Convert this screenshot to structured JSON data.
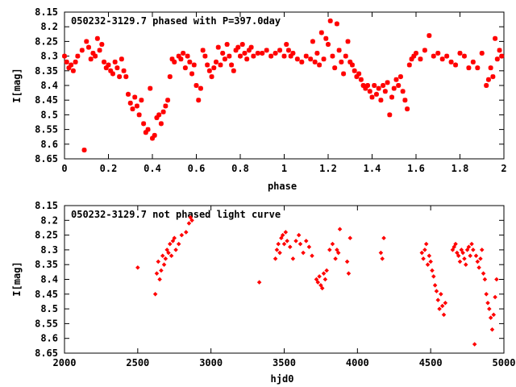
{
  "point_color": "#ff0000",
  "chart_data": [
    {
      "type": "scatter",
      "title": "050232-3129.7 phased with P=397.0day",
      "xlabel": "phase",
      "ylabel": "I[mag]",
      "xlim": [
        0,
        2
      ],
      "ylim": [
        8.15,
        8.65
      ],
      "y_inverted": true,
      "xticks": [
        0,
        0.2,
        0.4,
        0.6,
        0.8,
        1,
        1.2,
        1.4,
        1.6,
        1.8,
        2
      ],
      "xtick_labels": [
        "0",
        "0.2",
        "0.4",
        "0.6",
        "0.8",
        "1",
        "1.2",
        "1.4",
        "1.6",
        "1.8",
        "2"
      ],
      "yticks": [
        8.15,
        8.2,
        8.25,
        8.3,
        8.35,
        8.4,
        8.45,
        8.5,
        8.55,
        8.6,
        8.65
      ],
      "ytick_labels": [
        "8.15",
        "8.2",
        "8.25",
        "8.3",
        "8.35",
        "8.4",
        "8.45",
        "8.5",
        "8.55",
        "8.6",
        "8.65"
      ],
      "grid": false,
      "marker": "star",
      "points": [
        [
          0.0,
          8.3
        ],
        [
          0.01,
          8.32
        ],
        [
          0.02,
          8.34
        ],
        [
          0.03,
          8.33
        ],
        [
          0.04,
          8.35
        ],
        [
          0.05,
          8.32
        ],
        [
          0.06,
          8.3
        ],
        [
          0.08,
          8.28
        ],
        [
          0.09,
          8.62
        ],
        [
          0.1,
          8.25
        ],
        [
          0.11,
          8.27
        ],
        [
          0.12,
          8.31
        ],
        [
          0.13,
          8.29
        ],
        [
          0.14,
          8.3
        ],
        [
          0.15,
          8.24
        ],
        [
          0.16,
          8.28
        ],
        [
          0.17,
          8.26
        ],
        [
          0.18,
          8.32
        ],
        [
          0.19,
          8.34
        ],
        [
          0.2,
          8.33
        ],
        [
          0.21,
          8.35
        ],
        [
          0.22,
          8.36
        ],
        [
          0.23,
          8.32
        ],
        [
          0.24,
          8.34
        ],
        [
          0.25,
          8.37
        ],
        [
          0.26,
          8.31
        ],
        [
          0.27,
          8.35
        ],
        [
          0.28,
          8.37
        ],
        [
          0.29,
          8.43
        ],
        [
          0.3,
          8.46
        ],
        [
          0.31,
          8.48
        ],
        [
          0.32,
          8.44
        ],
        [
          0.33,
          8.47
        ],
        [
          0.34,
          8.5
        ],
        [
          0.35,
          8.45
        ],
        [
          0.36,
          8.53
        ],
        [
          0.37,
          8.56
        ],
        [
          0.38,
          8.55
        ],
        [
          0.39,
          8.41
        ],
        [
          0.4,
          8.58
        ],
        [
          0.41,
          8.57
        ],
        [
          0.42,
          8.51
        ],
        [
          0.43,
          8.5
        ],
        [
          0.44,
          8.53
        ],
        [
          0.45,
          8.49
        ],
        [
          0.46,
          8.47
        ],
        [
          0.47,
          8.45
        ],
        [
          0.48,
          8.37
        ],
        [
          0.49,
          8.31
        ],
        [
          0.5,
          8.32
        ],
        [
          0.52,
          8.3
        ],
        [
          0.53,
          8.31
        ],
        [
          0.54,
          8.29
        ],
        [
          0.55,
          8.34
        ],
        [
          0.56,
          8.3
        ],
        [
          0.57,
          8.32
        ],
        [
          0.58,
          8.36
        ],
        [
          0.59,
          8.33
        ],
        [
          0.6,
          8.4
        ],
        [
          0.61,
          8.45
        ],
        [
          0.62,
          8.41
        ],
        [
          0.63,
          8.28
        ],
        [
          0.64,
          8.3
        ],
        [
          0.65,
          8.33
        ],
        [
          0.66,
          8.35
        ],
        [
          0.67,
          8.37
        ],
        [
          0.68,
          8.34
        ],
        [
          0.69,
          8.32
        ],
        [
          0.7,
          8.27
        ],
        [
          0.71,
          8.33
        ],
        [
          0.72,
          8.29
        ],
        [
          0.73,
          8.31
        ],
        [
          0.74,
          8.26
        ],
        [
          0.75,
          8.3
        ],
        [
          0.76,
          8.33
        ],
        [
          0.77,
          8.35
        ],
        [
          0.78,
          8.28
        ],
        [
          0.79,
          8.27
        ],
        [
          0.8,
          8.3
        ],
        [
          0.81,
          8.26
        ],
        [
          0.82,
          8.29
        ],
        [
          0.83,
          8.31
        ],
        [
          0.84,
          8.28
        ],
        [
          0.85,
          8.27
        ],
        [
          0.86,
          8.3
        ],
        [
          0.88,
          8.29
        ],
        [
          0.9,
          8.29
        ],
        [
          0.92,
          8.28
        ],
        [
          0.94,
          8.3
        ],
        [
          0.96,
          8.29
        ],
        [
          0.98,
          8.28
        ],
        [
          1.0,
          8.3
        ],
        [
          1.01,
          8.26
        ],
        [
          1.02,
          8.28
        ],
        [
          1.03,
          8.3
        ],
        [
          1.04,
          8.29
        ],
        [
          1.06,
          8.31
        ],
        [
          1.08,
          8.32
        ],
        [
          1.1,
          8.3
        ],
        [
          1.12,
          8.31
        ],
        [
          1.13,
          8.25
        ],
        [
          1.14,
          8.32
        ],
        [
          1.15,
          8.29
        ],
        [
          1.16,
          8.33
        ],
        [
          1.17,
          8.22
        ],
        [
          1.18,
          8.31
        ],
        [
          1.19,
          8.24
        ],
        [
          1.2,
          8.26
        ],
        [
          1.21,
          8.18
        ],
        [
          1.22,
          8.3
        ],
        [
          1.23,
          8.34
        ],
        [
          1.24,
          8.19
        ],
        [
          1.25,
          8.28
        ],
        [
          1.26,
          8.32
        ],
        [
          1.27,
          8.36
        ],
        [
          1.28,
          8.3
        ],
        [
          1.29,
          8.25
        ],
        [
          1.3,
          8.32
        ],
        [
          1.31,
          8.33
        ],
        [
          1.32,
          8.35
        ],
        [
          1.33,
          8.37
        ],
        [
          1.34,
          8.36
        ],
        [
          1.35,
          8.38
        ],
        [
          1.36,
          8.4
        ],
        [
          1.37,
          8.41
        ],
        [
          1.38,
          8.4
        ],
        [
          1.39,
          8.42
        ],
        [
          1.4,
          8.44
        ],
        [
          1.41,
          8.4
        ],
        [
          1.42,
          8.43
        ],
        [
          1.43,
          8.41
        ],
        [
          1.44,
          8.45
        ],
        [
          1.45,
          8.4
        ],
        [
          1.46,
          8.42
        ],
        [
          1.47,
          8.39
        ],
        [
          1.48,
          8.5
        ],
        [
          1.49,
          8.44
        ],
        [
          1.5,
          8.41
        ],
        [
          1.51,
          8.38
        ],
        [
          1.52,
          8.4
        ],
        [
          1.53,
          8.37
        ],
        [
          1.54,
          8.42
        ],
        [
          1.55,
          8.45
        ],
        [
          1.56,
          8.48
        ],
        [
          1.57,
          8.33
        ],
        [
          1.58,
          8.31
        ],
        [
          1.59,
          8.3
        ],
        [
          1.6,
          8.29
        ],
        [
          1.62,
          8.31
        ],
        [
          1.64,
          8.28
        ],
        [
          1.66,
          8.23
        ],
        [
          1.68,
          8.3
        ],
        [
          1.7,
          8.29
        ],
        [
          1.72,
          8.31
        ],
        [
          1.74,
          8.3
        ],
        [
          1.76,
          8.32
        ],
        [
          1.78,
          8.33
        ],
        [
          1.8,
          8.29
        ],
        [
          1.82,
          8.3
        ],
        [
          1.84,
          8.34
        ],
        [
          1.86,
          8.32
        ],
        [
          1.88,
          8.34
        ],
        [
          1.9,
          8.29
        ],
        [
          1.92,
          8.4
        ],
        [
          1.93,
          8.38
        ],
        [
          1.94,
          8.34
        ],
        [
          1.95,
          8.37
        ],
        [
          1.96,
          8.24
        ],
        [
          1.97,
          8.31
        ],
        [
          1.98,
          8.28
        ],
        [
          1.99,
          8.3
        ]
      ]
    },
    {
      "type": "scatter",
      "title": "050232-3129.7 not phased light curve",
      "xlabel": "hjd0",
      "ylabel": "I[mag]",
      "xlim": [
        2000,
        5000
      ],
      "ylim": [
        8.15,
        8.65
      ],
      "y_inverted": true,
      "xticks": [
        2000,
        2500,
        3000,
        3500,
        4000,
        4500,
        5000
      ],
      "xtick_labels": [
        "2000",
        "2500",
        "3000",
        "3500",
        "4000",
        "4500",
        "5000"
      ],
      "yticks": [
        8.15,
        8.2,
        8.25,
        8.3,
        8.35,
        8.4,
        8.45,
        8.5,
        8.55,
        8.6,
        8.65
      ],
      "ytick_labels": [
        "8.15",
        "8.2",
        "8.25",
        "8.3",
        "8.35",
        "8.4",
        "8.45",
        "8.5",
        "8.55",
        "8.6",
        "8.65"
      ],
      "grid": false,
      "marker": "diamond",
      "points": [
        [
          2500,
          8.36
        ],
        [
          2620,
          8.45
        ],
        [
          2630,
          8.38
        ],
        [
          2640,
          8.34
        ],
        [
          2650,
          8.4
        ],
        [
          2660,
          8.37
        ],
        [
          2670,
          8.32
        ],
        [
          2680,
          8.35
        ],
        [
          2690,
          8.33
        ],
        [
          2700,
          8.3
        ],
        [
          2710,
          8.31
        ],
        [
          2720,
          8.28
        ],
        [
          2730,
          8.32
        ],
        [
          2740,
          8.27
        ],
        [
          2750,
          8.26
        ],
        [
          2760,
          8.3
        ],
        [
          2780,
          8.28
        ],
        [
          2800,
          8.25
        ],
        [
          2830,
          8.24
        ],
        [
          2850,
          8.21
        ],
        [
          2860,
          8.19
        ],
        [
          2870,
          8.2
        ],
        [
          3330,
          8.41
        ],
        [
          3440,
          8.33
        ],
        [
          3450,
          8.3
        ],
        [
          3460,
          8.28
        ],
        [
          3470,
          8.31
        ],
        [
          3480,
          8.26
        ],
        [
          3490,
          8.25
        ],
        [
          3500,
          8.28
        ],
        [
          3510,
          8.24
        ],
        [
          3520,
          8.27
        ],
        [
          3540,
          8.29
        ],
        [
          3560,
          8.33
        ],
        [
          3580,
          8.27
        ],
        [
          3600,
          8.25
        ],
        [
          3610,
          8.28
        ],
        [
          3630,
          8.31
        ],
        [
          3650,
          8.27
        ],
        [
          3670,
          8.29
        ],
        [
          3690,
          8.32
        ],
        [
          3720,
          8.4
        ],
        [
          3730,
          8.41
        ],
        [
          3740,
          8.39
        ],
        [
          3750,
          8.42
        ],
        [
          3760,
          8.43
        ],
        [
          3770,
          8.38
        ],
        [
          3780,
          8.4
        ],
        [
          3790,
          8.37
        ],
        [
          3810,
          8.3
        ],
        [
          3830,
          8.28
        ],
        [
          3850,
          8.33
        ],
        [
          3860,
          8.3
        ],
        [
          3870,
          8.31
        ],
        [
          3880,
          8.23
        ],
        [
          3930,
          8.34
        ],
        [
          3940,
          8.38
        ],
        [
          3950,
          8.26
        ],
        [
          4160,
          8.31
        ],
        [
          4170,
          8.33
        ],
        [
          4180,
          8.26
        ],
        [
          4440,
          8.31
        ],
        [
          4450,
          8.33
        ],
        [
          4460,
          8.3
        ],
        [
          4470,
          8.28
        ],
        [
          4480,
          8.35
        ],
        [
          4490,
          8.32
        ],
        [
          4500,
          8.34
        ],
        [
          4510,
          8.37
        ],
        [
          4520,
          8.39
        ],
        [
          4530,
          8.42
        ],
        [
          4540,
          8.44
        ],
        [
          4550,
          8.47
        ],
        [
          4560,
          8.5
        ],
        [
          4570,
          8.45
        ],
        [
          4580,
          8.49
        ],
        [
          4590,
          8.52
        ],
        [
          4600,
          8.48
        ],
        [
          4650,
          8.3
        ],
        [
          4660,
          8.29
        ],
        [
          4670,
          8.28
        ],
        [
          4680,
          8.31
        ],
        [
          4690,
          8.32
        ],
        [
          4700,
          8.34
        ],
        [
          4710,
          8.3
        ],
        [
          4720,
          8.31
        ],
        [
          4730,
          8.33
        ],
        [
          4740,
          8.35
        ],
        [
          4750,
          8.3
        ],
        [
          4760,
          8.29
        ],
        [
          4770,
          8.32
        ],
        [
          4780,
          8.28
        ],
        [
          4790,
          8.3
        ],
        [
          4800,
          8.62
        ],
        [
          4810,
          8.32
        ],
        [
          4820,
          8.34
        ],
        [
          4830,
          8.36
        ],
        [
          4840,
          8.33
        ],
        [
          4850,
          8.3
        ],
        [
          4860,
          8.38
        ],
        [
          4870,
          8.4
        ],
        [
          4880,
          8.45
        ],
        [
          4890,
          8.48
        ],
        [
          4900,
          8.5
        ],
        [
          4910,
          8.53
        ],
        [
          4920,
          8.57
        ],
        [
          4930,
          8.52
        ],
        [
          4940,
          8.46
        ],
        [
          4950,
          8.4
        ]
      ]
    }
  ]
}
